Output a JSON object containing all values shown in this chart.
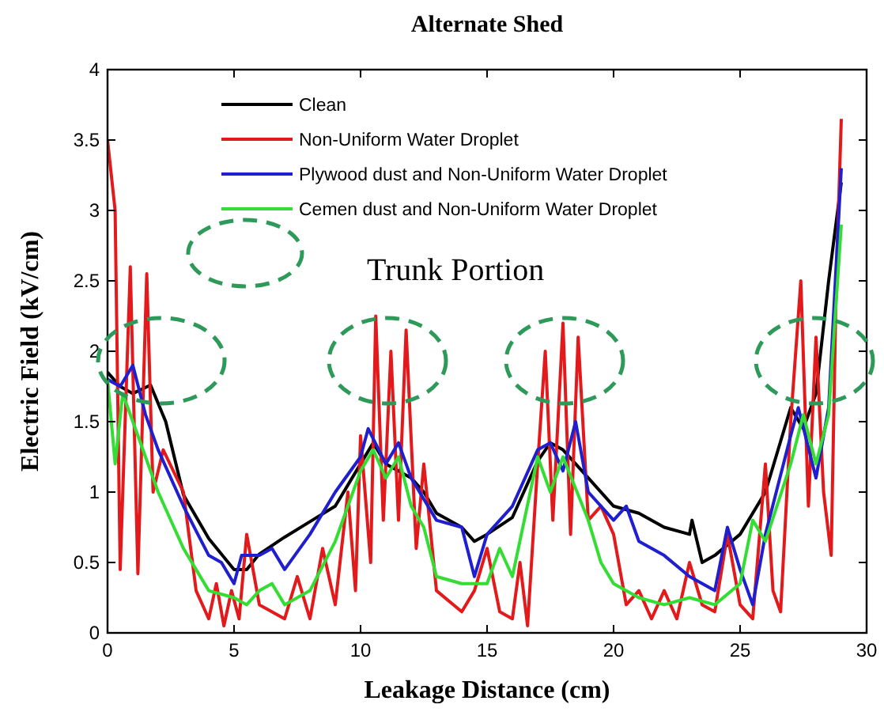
{
  "chart_data": {
    "type": "line",
    "title": "Alternate Shed",
    "xlabel": "Leakage Distance  (cm)",
    "ylabel": "Electric Field  (kV/cm)",
    "annotations": [
      "Trunk Portion"
    ],
    "xlim": [
      0,
      30
    ],
    "ylim": [
      0,
      4
    ],
    "xticks": [
      0,
      5,
      10,
      15,
      20,
      25,
      30
    ],
    "yticks": [
      0,
      0.5,
      1,
      1.5,
      2,
      2.5,
      3,
      3.5,
      4
    ],
    "grid": false,
    "legend": "top",
    "line_style": "solid",
    "series": [
      {
        "name": "Clean",
        "color": "#000000",
        "x": [
          0,
          0.5,
          1,
          1.7,
          2.3,
          3,
          4,
          5,
          5.5,
          6,
          7,
          8,
          9,
          10,
          10.5,
          11,
          12,
          12.5,
          13,
          14,
          14.5,
          15,
          16,
          17,
          17.5,
          18,
          19,
          20,
          21,
          22,
          23,
          23.1,
          23.5,
          24,
          25,
          26,
          27,
          27.5,
          28,
          28.5,
          29
        ],
        "values": [
          1.85,
          1.75,
          1.7,
          1.76,
          1.5,
          0.98,
          0.67,
          0.45,
          0.45,
          0.56,
          0.68,
          0.79,
          0.9,
          1.2,
          1.35,
          1.2,
          1.1,
          1.0,
          0.85,
          0.75,
          0.65,
          0.7,
          0.82,
          1.22,
          1.35,
          1.3,
          1.1,
          0.9,
          0.85,
          0.75,
          0.7,
          0.8,
          0.5,
          0.55,
          0.7,
          1.0,
          1.6,
          1.45,
          1.7,
          2.5,
          3.2
        ]
      },
      {
        "name": "Non-Uniform Water Droplet",
        "color": "#e31a1c",
        "x": [
          0,
          0.3,
          0.5,
          0.9,
          1.2,
          1.55,
          1.8,
          2.2,
          3,
          3.5,
          4,
          4.3,
          4.6,
          4.9,
          5.2,
          5.5,
          6,
          7,
          7.5,
          8,
          8.5,
          9,
          9.5,
          9.8,
          10,
          10.4,
          10.6,
          10.9,
          11.2,
          11.5,
          11.8,
          12.2,
          12.5,
          13,
          14,
          14.5,
          15,
          15.5,
          16,
          16.3,
          16.6,
          17,
          17.3,
          17.6,
          18,
          18.3,
          18.6,
          19,
          19.5,
          20,
          20.5,
          21,
          21.5,
          22,
          22.5,
          23,
          23.5,
          24,
          24.5,
          25,
          25.5,
          26,
          26.3,
          26.6,
          27,
          27.4,
          27.7,
          28,
          28.3,
          28.6,
          28.8,
          29
        ],
        "values": [
          3.5,
          3.0,
          0.45,
          2.6,
          0.42,
          2.55,
          1.0,
          1.3,
          1.0,
          0.3,
          0.1,
          0.35,
          0.05,
          0.3,
          0.1,
          0.7,
          0.2,
          0.1,
          0.4,
          0.1,
          0.6,
          0.2,
          1.0,
          0.3,
          1.4,
          0.5,
          2.25,
          0.8,
          2.0,
          0.8,
          2.15,
          0.6,
          1.2,
          0.3,
          0.15,
          0.3,
          0.6,
          0.15,
          0.1,
          0.5,
          0.05,
          1.2,
          2.0,
          0.8,
          2.2,
          0.7,
          2.1,
          0.8,
          0.9,
          0.7,
          0.2,
          0.3,
          0.1,
          0.3,
          0.1,
          0.5,
          0.2,
          0.15,
          0.7,
          0.2,
          0.1,
          1.2,
          0.3,
          0.15,
          1.5,
          2.5,
          0.9,
          2.1,
          1.0,
          0.55,
          2.5,
          3.65
        ]
      },
      {
        "name": "Plywood dust and Non-Uniform Water Droplet",
        "color": "#1f1fd0",
        "x": [
          0,
          0.5,
          1,
          1.5,
          2,
          3,
          4,
          4.5,
          5,
          5.3,
          6,
          6.5,
          7,
          8,
          9,
          10,
          10.3,
          11,
          11.5,
          12,
          13,
          14,
          14.5,
          15,
          16,
          17,
          17.5,
          18,
          18.5,
          19,
          20,
          20.5,
          21,
          22,
          23,
          24,
          24.5,
          25,
          25.5,
          26,
          27,
          27.3,
          28,
          28.5,
          29
        ],
        "values": [
          1.8,
          1.75,
          1.9,
          1.55,
          1.3,
          0.9,
          0.55,
          0.5,
          0.35,
          0.55,
          0.55,
          0.6,
          0.45,
          0.7,
          1.0,
          1.25,
          1.45,
          1.2,
          1.35,
          1.1,
          0.8,
          0.75,
          0.4,
          0.7,
          0.9,
          1.3,
          1.35,
          1.15,
          1.5,
          1.0,
          0.8,
          0.9,
          0.65,
          0.55,
          0.4,
          0.3,
          0.75,
          0.45,
          0.2,
          0.7,
          1.4,
          1.6,
          1.1,
          1.6,
          3.3
        ]
      },
      {
        "name": "Cemen dust and Non-Uniform Water Droplet",
        "color": "#33dd33",
        "x": [
          0,
          0.3,
          0.6,
          1,
          2,
          3,
          4,
          5,
          5.5,
          6,
          6.5,
          7,
          8,
          9,
          10,
          10.5,
          11,
          11.5,
          12,
          12.5,
          13,
          14,
          15,
          15.5,
          16,
          17,
          17.5,
          18,
          19,
          19.5,
          20,
          21,
          22,
          23,
          24,
          25,
          25.5,
          26,
          27,
          27.5,
          28,
          28.5,
          29
        ],
        "values": [
          1.8,
          1.2,
          1.7,
          1.5,
          1.0,
          0.6,
          0.3,
          0.25,
          0.2,
          0.3,
          0.35,
          0.2,
          0.3,
          0.65,
          1.15,
          1.3,
          1.1,
          1.25,
          0.9,
          0.75,
          0.4,
          0.35,
          0.35,
          0.6,
          0.4,
          1.25,
          1.0,
          1.25,
          0.8,
          0.5,
          0.35,
          0.25,
          0.2,
          0.25,
          0.2,
          0.35,
          0.8,
          0.65,
          1.2,
          1.55,
          1.2,
          1.55,
          2.9
        ]
      }
    ]
  }
}
